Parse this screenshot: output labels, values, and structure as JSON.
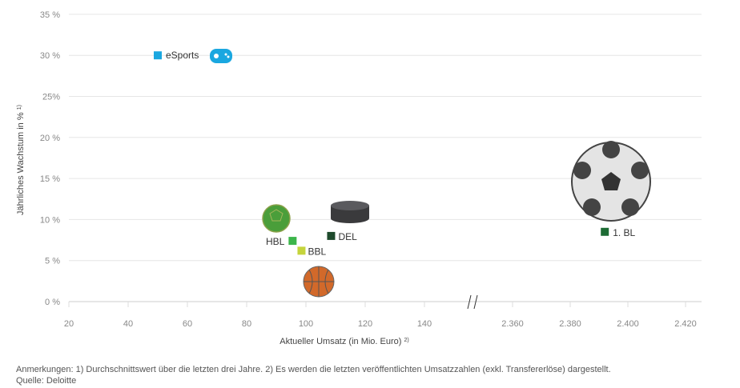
{
  "chart_data": {
    "type": "scatter",
    "xlabel": "Aktueller Umsatz (in Mio. Euro)",
    "xlabel_sup": "2)",
    "ylabel": "Jährliches Wachstum in %",
    "ylabel_sup": "1)",
    "x_ticks_left": [
      20,
      40,
      60,
      80,
      100,
      120,
      140
    ],
    "x_ticks_right": [
      2360,
      2380,
      2400,
      2420
    ],
    "x_tick_labels_left": [
      "20",
      "40",
      "60",
      "80",
      "100",
      "120",
      "140"
    ],
    "x_tick_labels_right": [
      "2.360",
      "2.380",
      "2.400",
      "2.420"
    ],
    "x_break": true,
    "y_ticks": [
      0,
      5,
      10,
      15,
      20,
      25,
      30,
      35
    ],
    "y_tick_labels": [
      "0 %",
      "5 %",
      "10 %",
      "15 %",
      "20 %",
      "25%",
      "30 %",
      "35 %"
    ],
    "ylim": [
      0,
      35
    ],
    "grid": "horizontal",
    "points": [
      {
        "label": "eSports",
        "x": 50,
        "y": 30,
        "color": "#1aa7e0",
        "icon": "gamepad-icon"
      },
      {
        "label": "HBL",
        "x": 95.5,
        "y": 7.4,
        "color": "#3cb54a",
        "icon": "handball-icon"
      },
      {
        "label": "BBL",
        "x": 98.5,
        "y": 6.2,
        "color": "#c5d43c",
        "icon": "basketball-icon"
      },
      {
        "label": "DEL",
        "x": 108.5,
        "y": 8.0,
        "color": "#1e4a2c",
        "icon": "hockey-puck-icon"
      },
      {
        "label": "1. BL",
        "x": 2392,
        "y": 8.5,
        "color": "#1d6b34",
        "icon": "football-icon"
      }
    ]
  },
  "notes": {
    "remarks": "Anmerkungen: 1) Durchschnittswert über die letzten drei Jahre.  2) Es werden die letzten veröffentlichten Umsatzzahlen (exkl. Transfererlöse) dargestellt.",
    "source": "Quelle: Deloitte"
  }
}
